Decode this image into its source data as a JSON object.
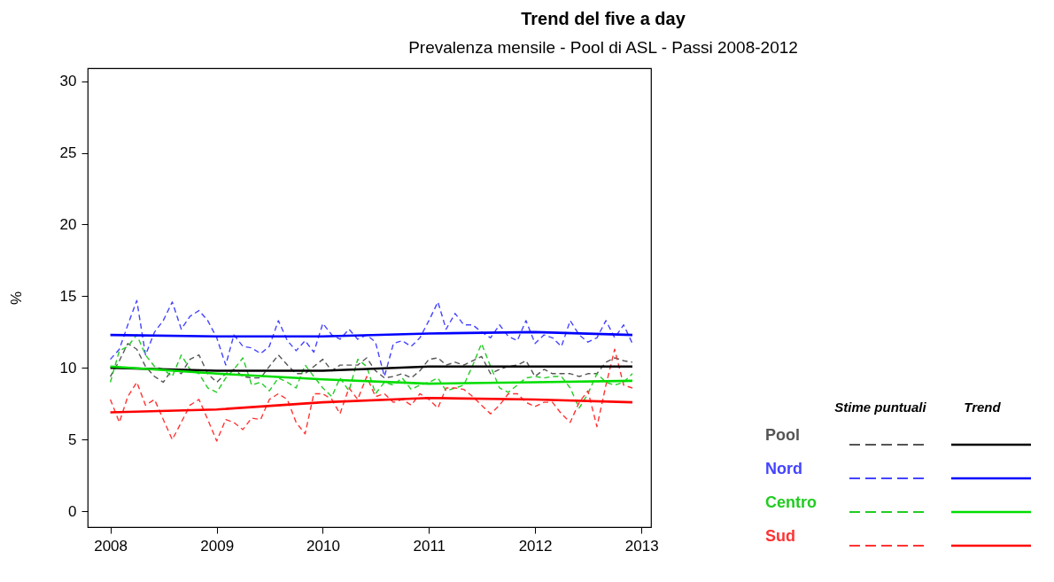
{
  "chart_data": {
    "type": "line",
    "title": "Trend del five a day",
    "subtitle": "Prevalenza mensile - Pool di ASL - Passi 2008-2012",
    "ylabel": "%",
    "legend_title": "Stime puntuali",
    "annotations": [
      "Trend"
    ],
    "legend": "right",
    "grid": false,
    "marker": "none",
    "x": [
      "2008-01",
      "2008-02",
      "2008-03",
      "2008-04",
      "2008-05",
      "2008-06",
      "2008-07",
      "2008-08",
      "2008-09",
      "2008-10",
      "2008-11",
      "2008-12",
      "2009-01",
      "2009-02",
      "2009-03",
      "2009-04",
      "2009-05",
      "2009-06",
      "2009-07",
      "2009-08",
      "2009-09",
      "2009-10",
      "2009-11",
      "2009-12",
      "2010-01",
      "2010-02",
      "2010-03",
      "2010-04",
      "2010-05",
      "2010-06",
      "2010-07",
      "2010-08",
      "2010-09",
      "2010-10",
      "2010-11",
      "2010-12",
      "2011-01",
      "2011-02",
      "2011-03",
      "2011-04",
      "2011-05",
      "2011-06",
      "2011-07",
      "2011-08",
      "2011-09",
      "2011-10",
      "2011-11",
      "2011-12",
      "2012-01",
      "2012-02",
      "2012-03",
      "2012-04",
      "2012-05",
      "2012-06",
      "2012-07",
      "2012-08",
      "2012-09",
      "2012-10",
      "2012-11",
      "2012-12"
    ],
    "xlim": [
      "2007-10-15",
      "2013-02-03"
    ],
    "xticks": [
      "2008",
      "2009",
      "2010",
      "2011",
      "2012",
      "2013"
    ],
    "ylim": [
      -1.1,
      30.9
    ],
    "yticks": [
      0,
      5,
      10,
      15,
      20,
      25,
      30
    ],
    "series": [
      {
        "name": "Pool",
        "color": "#555555",
        "line_style": "dashed",
        "values": [
          9.4,
          10.5,
          11.7,
          11.3,
          10.1,
          9.4,
          9.0,
          9.9,
          9.6,
          10.6,
          10.9,
          9.6,
          9.0,
          9.6,
          9.9,
          9.4,
          9.3,
          9.3,
          10.1,
          10.9,
          10.2,
          9.6,
          9.6,
          10.1,
          10.6,
          9.8,
          10.2,
          10.2,
          10.2,
          10.7,
          9.8,
          9.3,
          9.4,
          9.6,
          9.3,
          9.8,
          10.6,
          10.7,
          10.2,
          10.4,
          10.2,
          10.5,
          10.8,
          9.6,
          9.9,
          10.1,
          10.2,
          10.5,
          9.4,
          9.9,
          9.6,
          9.6,
          9.6,
          9.4,
          9.6,
          9.6,
          10.4,
          10.7,
          10.5,
          10.4
        ]
      },
      {
        "name": "Nord",
        "color": "#4444ff",
        "line_style": "dashed",
        "values": [
          10.6,
          11.3,
          13.0,
          14.7,
          10.9,
          12.5,
          13.3,
          14.6,
          12.7,
          13.6,
          14.0,
          13.3,
          12.1,
          10.2,
          12.3,
          11.5,
          11.4,
          11.0,
          11.5,
          13.3,
          11.9,
          11.2,
          11.9,
          11.1,
          13.1,
          12.3,
          12.0,
          12.7,
          12.0,
          12.3,
          11.8,
          9.4,
          11.7,
          11.9,
          11.5,
          12.1,
          13.3,
          14.6,
          12.7,
          13.8,
          13.0,
          13.0,
          12.5,
          12.1,
          13.0,
          12.2,
          11.9,
          13.3,
          11.7,
          12.3,
          12.1,
          11.5,
          13.3,
          12.3,
          11.8,
          12.1,
          13.3,
          12.1,
          13.0,
          11.7
        ]
      },
      {
        "name": "Centro",
        "color": "#22cc22",
        "line_style": "dashed",
        "values": [
          9.0,
          11.2,
          11.5,
          12.3,
          10.9,
          10.1,
          9.9,
          9.4,
          10.9,
          9.9,
          9.6,
          8.6,
          8.3,
          9.3,
          9.9,
          10.7,
          8.8,
          9.0,
          8.4,
          9.3,
          9.0,
          8.6,
          10.2,
          9.4,
          8.6,
          8.0,
          9.3,
          8.4,
          10.6,
          10.1,
          8.2,
          9.0,
          8.8,
          9.3,
          8.5,
          8.8,
          9.0,
          9.3,
          8.4,
          8.6,
          8.8,
          10.2,
          11.7,
          10.1,
          8.6,
          8.3,
          8.8,
          9.3,
          9.4,
          9.3,
          9.4,
          9.4,
          8.6,
          7.2,
          8.2,
          9.6,
          9.0,
          8.8,
          9.0,
          9.6
        ]
      },
      {
        "name": "Sud",
        "color": "#ff3333",
        "line_style": "dashed",
        "values": [
          7.8,
          6.2,
          8.0,
          9.0,
          7.4,
          7.8,
          6.4,
          5.0,
          6.2,
          7.4,
          7.8,
          6.4,
          4.9,
          6.4,
          6.2,
          5.7,
          6.5,
          6.4,
          7.8,
          8.2,
          7.8,
          6.2,
          5.4,
          8.2,
          8.2,
          7.8,
          6.8,
          8.6,
          7.8,
          9.4,
          8.0,
          8.2,
          7.6,
          7.8,
          7.4,
          8.2,
          7.8,
          7.2,
          8.6,
          8.6,
          8.5,
          8.0,
          7.4,
          6.8,
          7.4,
          8.2,
          8.2,
          7.6,
          7.3,
          7.6,
          7.6,
          6.8,
          6.2,
          7.6,
          8.4,
          5.9,
          8.8,
          11.3,
          8.8,
          8.6
        ]
      },
      {
        "color": "#000000",
        "line_style": "solid",
        "x": [
          "2008-01",
          "2009-01",
          "2010-01",
          "2011-01",
          "2012-01",
          "2012-12"
        ],
        "values": [
          10.0,
          9.8,
          9.8,
          10.1,
          10.1,
          10.1
        ]
      },
      {
        "color": "#0000ff",
        "line_style": "solid",
        "x": [
          "2008-01",
          "2009-01",
          "2010-01",
          "2011-01",
          "2012-01",
          "2012-12"
        ],
        "values": [
          12.3,
          12.2,
          12.2,
          12.4,
          12.5,
          12.3
        ]
      },
      {
        "color": "#00dd00",
        "line_style": "solid",
        "x": [
          "2008-01",
          "2009-01",
          "2010-01",
          "2011-01",
          "2012-01",
          "2012-12"
        ],
        "values": [
          10.1,
          9.6,
          9.2,
          8.9,
          9.0,
          9.1
        ]
      },
      {
        "color": "#ff0000",
        "line_style": "solid",
        "x": [
          "2008-01",
          "2009-01",
          "2010-01",
          "2011-01",
          "2012-01",
          "2012-12"
        ],
        "values": [
          6.9,
          7.1,
          7.6,
          7.9,
          7.8,
          7.6
        ]
      }
    ]
  }
}
